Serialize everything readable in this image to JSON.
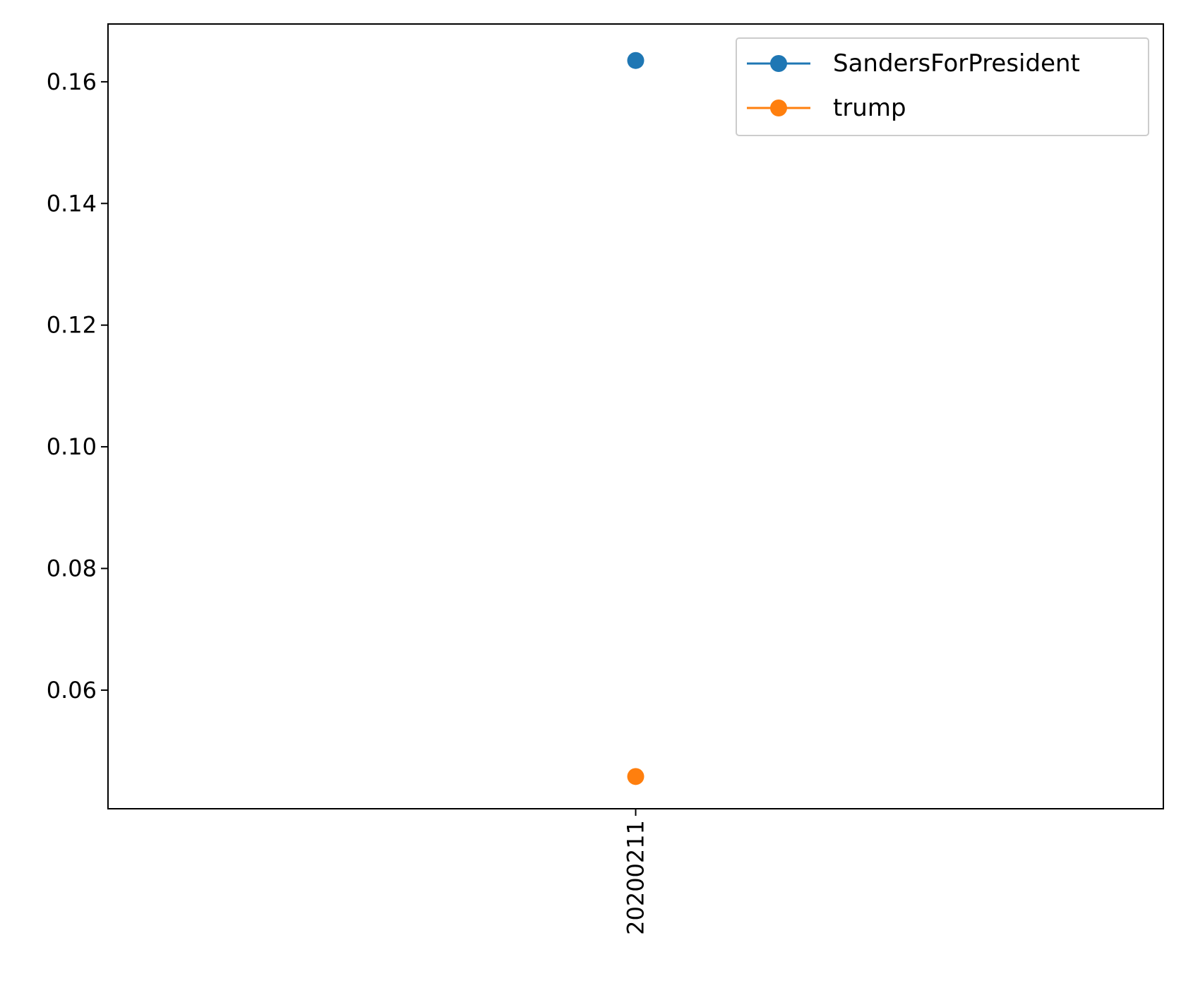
{
  "chart_data": {
    "type": "line",
    "title": "",
    "xlabel": "",
    "ylabel": "",
    "categories": [
      "20200211"
    ],
    "series": [
      {
        "name": "SandersForPresident",
        "color": "#1f77b4",
        "values": [
          0.1635
        ]
      },
      {
        "name": "trump",
        "color": "#ff7f0e",
        "values": [
          0.0458
        ]
      }
    ],
    "ylim": [
      0.0405,
      0.1695
    ],
    "yticks": [
      0.06,
      0.08,
      0.1,
      0.12,
      0.14,
      0.16
    ],
    "ytick_labels": [
      "0.06",
      "0.08",
      "0.10",
      "0.12",
      "0.14",
      "0.16"
    ],
    "grid": false,
    "legend_position": "upper right",
    "marker": "circle"
  }
}
